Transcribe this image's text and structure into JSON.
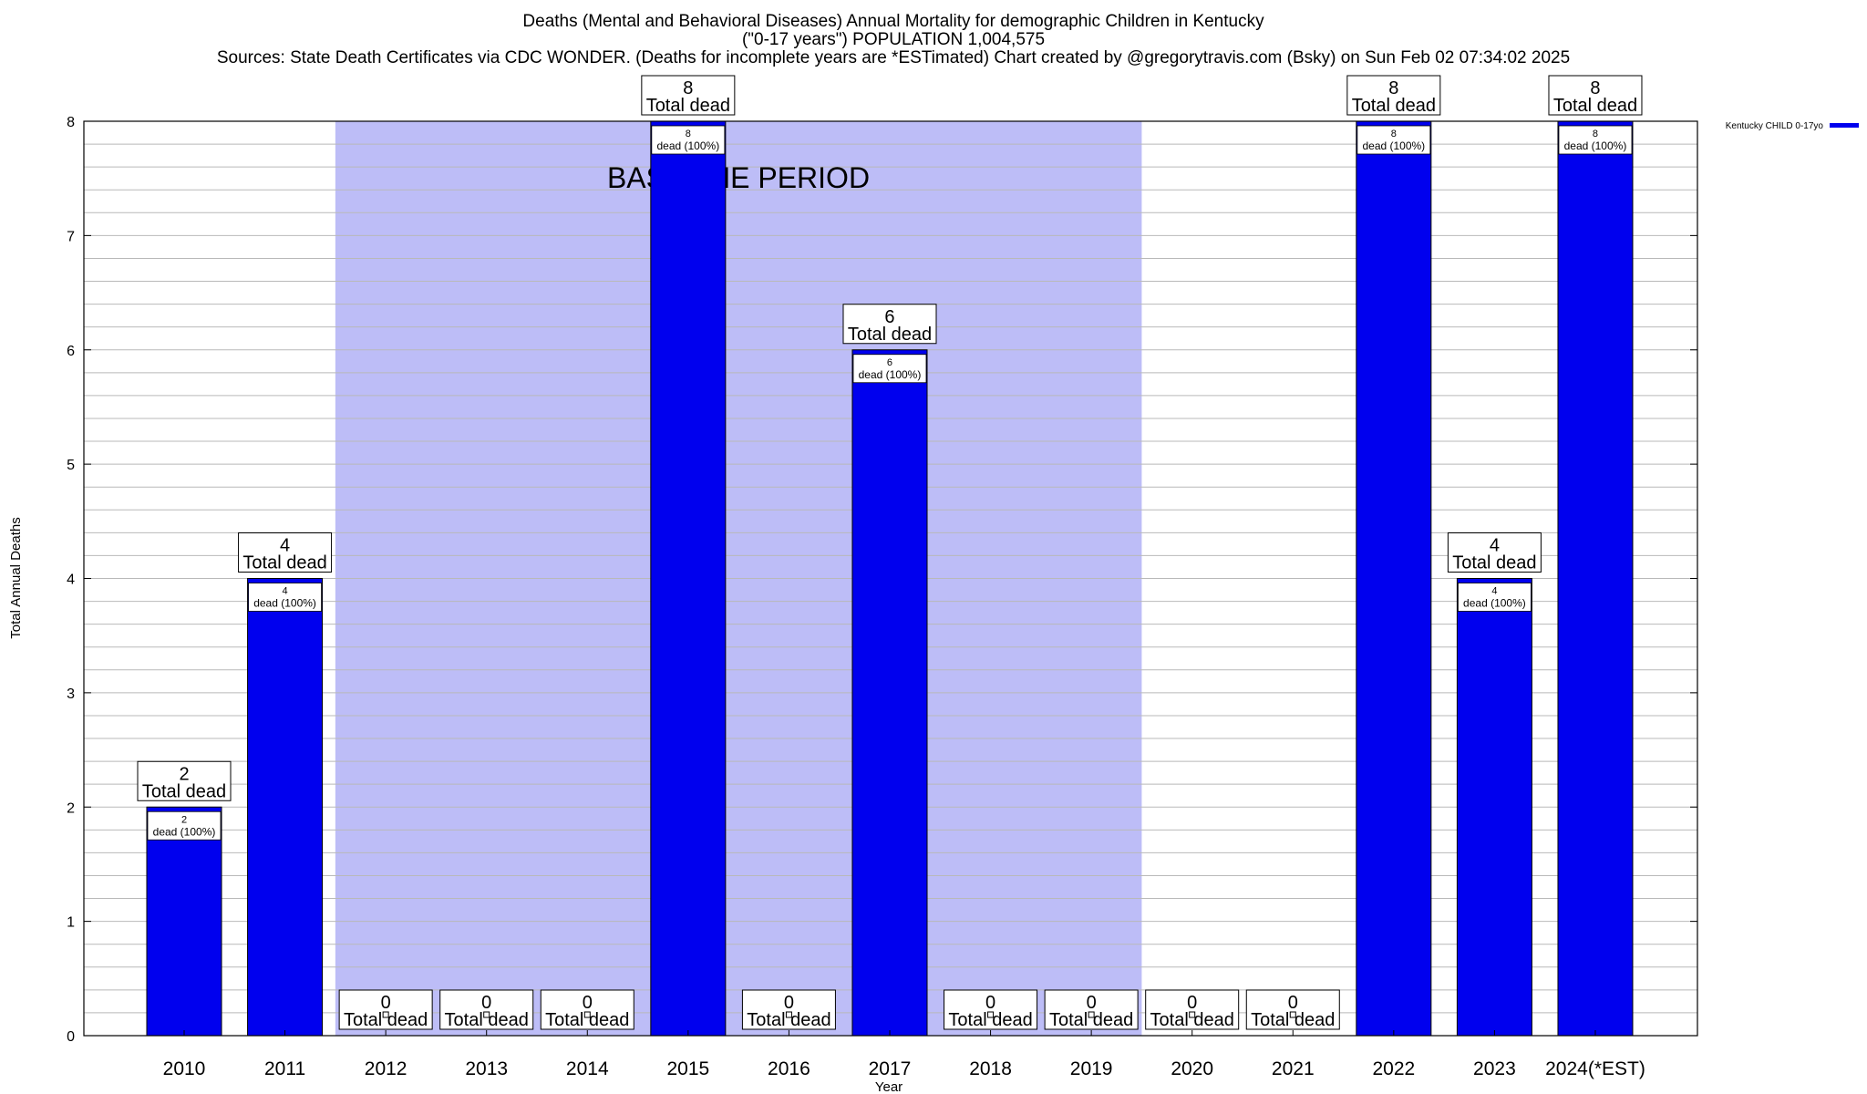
{
  "chart_data": {
    "type": "bar",
    "title_lines": [
      "Deaths (Mental and Behavioral Diseases) Annual Mortality for demographic Children in Kentucky",
      "(\"0-17 years\") POPULATION 1,004,575",
      "Sources: State Death Certificates via CDC WONDER. (Deaths for incomplete years are *ESTimated)                Chart created by @gregorytravis.com (Bsky) on Sun Feb 02 07:34:02 2025"
    ],
    "xlabel": "Year",
    "ylabel": "Total Annual Deaths",
    "ylim": [
      0,
      8
    ],
    "yticks": [
      "0",
      "1",
      "2",
      "3",
      "4",
      "5",
      "6",
      "7",
      "8"
    ],
    "grid": true,
    "legend_position": "top-right",
    "categories": [
      "2010",
      "2011",
      "2012",
      "2013",
      "2014",
      "2015",
      "2016",
      "2017",
      "2018",
      "2019",
      "2020",
      "2021",
      "2022",
      "2023",
      "2024(*EST)"
    ],
    "series": [
      {
        "name": "Kentucky CHILD 0-17yo",
        "color": "#0000ee",
        "values": [
          2,
          4,
          0,
          0,
          0,
          8,
          0,
          6,
          0,
          0,
          0,
          0,
          8,
          4,
          8
        ]
      }
    ],
    "total_label_suffix": "Total dead",
    "inner_label_suffix": "dead (100%)",
    "baseline_period": {
      "label": "BASELINE PERIOD",
      "start_year": "2012",
      "end_year": "2019",
      "color": "#bdbdf7"
    }
  }
}
